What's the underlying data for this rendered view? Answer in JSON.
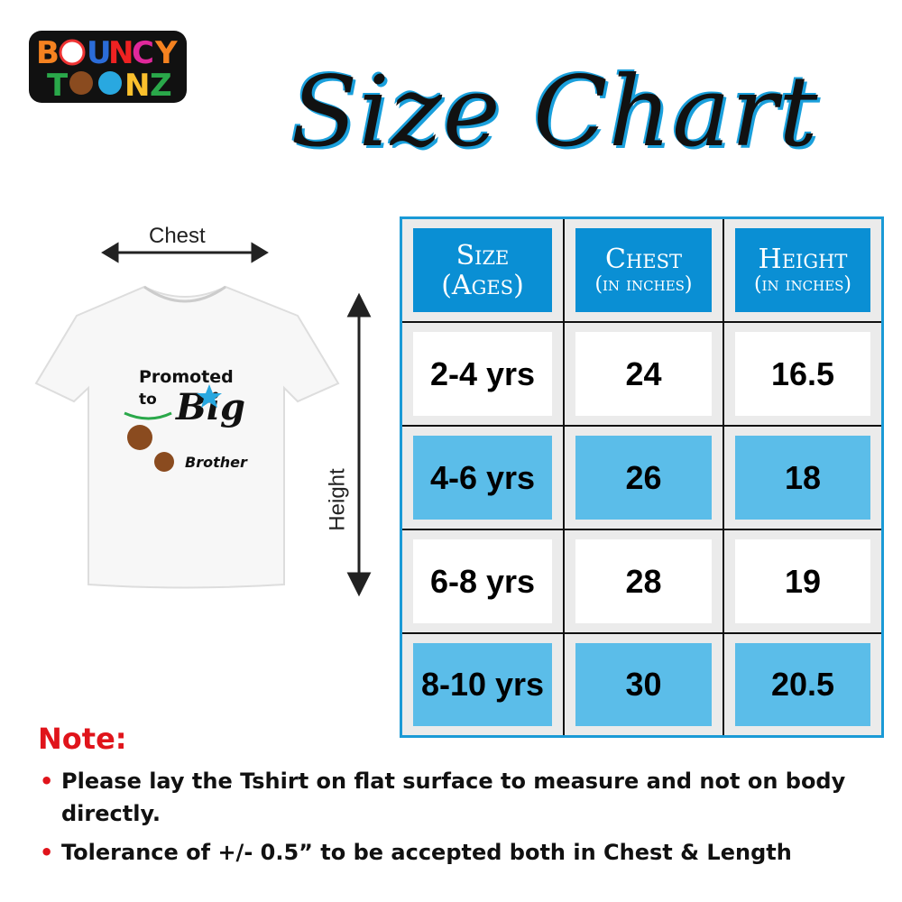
{
  "logo": {
    "line1": "BOUNCY",
    "line2": "TOONZ"
  },
  "title": "Size Chart",
  "diagram": {
    "chest_label": "Chest",
    "height_label": "Height",
    "shirt_print": {
      "line1": "Promoted",
      "line2": "to",
      "line3": "Big",
      "line4": "Brother"
    }
  },
  "table": {
    "headers": [
      {
        "main": "Size",
        "sub": "(Ages)"
      },
      {
        "main": "Chest",
        "sub": "(in inches)"
      },
      {
        "main": "Height",
        "sub": "(in inches)"
      }
    ],
    "rows": [
      [
        "2-4 yrs",
        "24",
        "16.5"
      ],
      [
        "4-6 yrs",
        "26",
        "18"
      ],
      [
        "6-8 yrs",
        "28",
        "19"
      ],
      [
        "8-10 yrs",
        "30",
        "20.5"
      ]
    ]
  },
  "note": {
    "title": "Note:",
    "items": [
      "Please lay the Tshirt on flat surface to measure and not on body directly.",
      "Tolerance of +/- 0.5” to be accepted both in Chest & Length"
    ]
  },
  "colors": {
    "header_blue": "#0a8fd4",
    "row_blue": "#5bbde9",
    "border_blue": "#1a9ad6",
    "note_red": "#e0141b"
  }
}
